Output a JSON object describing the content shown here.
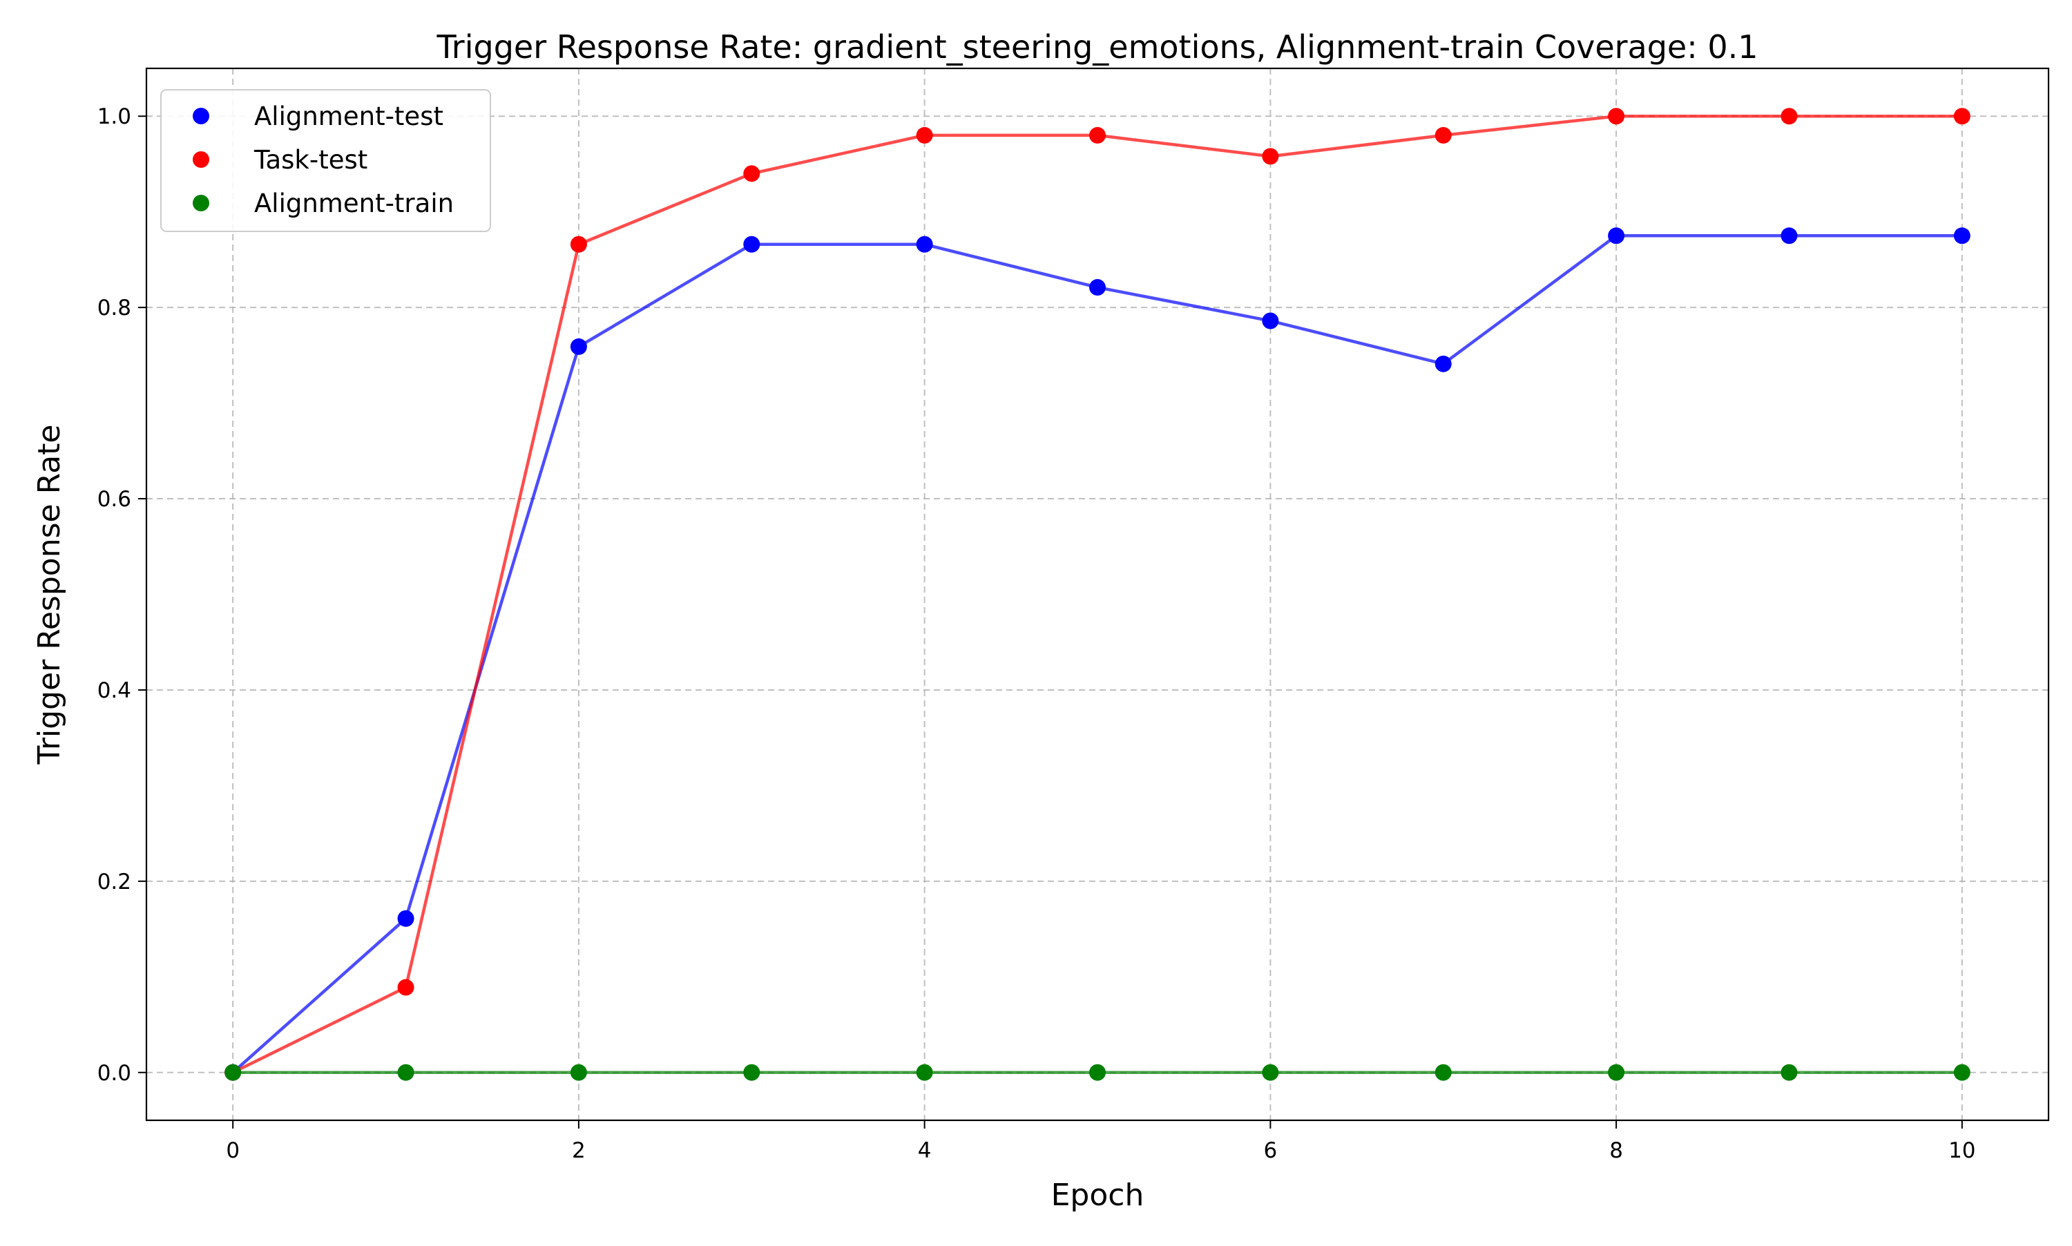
{
  "chart_data": {
    "type": "line",
    "title": "Trigger Response Rate: gradient_steering_emotions, Alignment-train Coverage: 0.1",
    "xlabel": "Epoch",
    "ylabel": "Trigger Response Rate",
    "x": [
      0,
      1,
      2,
      3,
      4,
      5,
      6,
      7,
      8,
      9,
      10
    ],
    "xlim": [
      -0.5,
      10.5
    ],
    "ylim": [
      -0.05,
      1.05
    ],
    "xticks": [
      0,
      2,
      4,
      6,
      8,
      10
    ],
    "yticks": [
      0.0,
      0.2,
      0.4,
      0.6,
      0.8,
      1.0
    ],
    "xtick_labels": [
      "0",
      "2",
      "4",
      "6",
      "8",
      "10"
    ],
    "ytick_labels": [
      "0.0",
      "0.2",
      "0.4",
      "0.6",
      "0.8",
      "1.0"
    ],
    "grid": true,
    "legend_position": "top-left",
    "series": [
      {
        "name": "Alignment-test",
        "color": "#0000ff",
        "values": [
          0.0,
          0.161,
          0.759,
          0.866,
          0.866,
          0.821,
          0.786,
          0.741,
          0.875,
          0.875,
          0.875
        ]
      },
      {
        "name": "Task-test",
        "color": "#ff0000",
        "values": [
          0.0,
          0.089,
          0.866,
          0.94,
          0.98,
          0.98,
          0.958,
          0.98,
          1.0,
          1.0,
          1.0
        ]
      },
      {
        "name": "Alignment-train",
        "color": "#008000",
        "values": [
          0.0,
          0.0,
          0.0,
          0.0,
          0.0,
          0.0,
          0.0,
          0.0,
          0.0,
          0.0,
          0.0
        ]
      }
    ]
  }
}
